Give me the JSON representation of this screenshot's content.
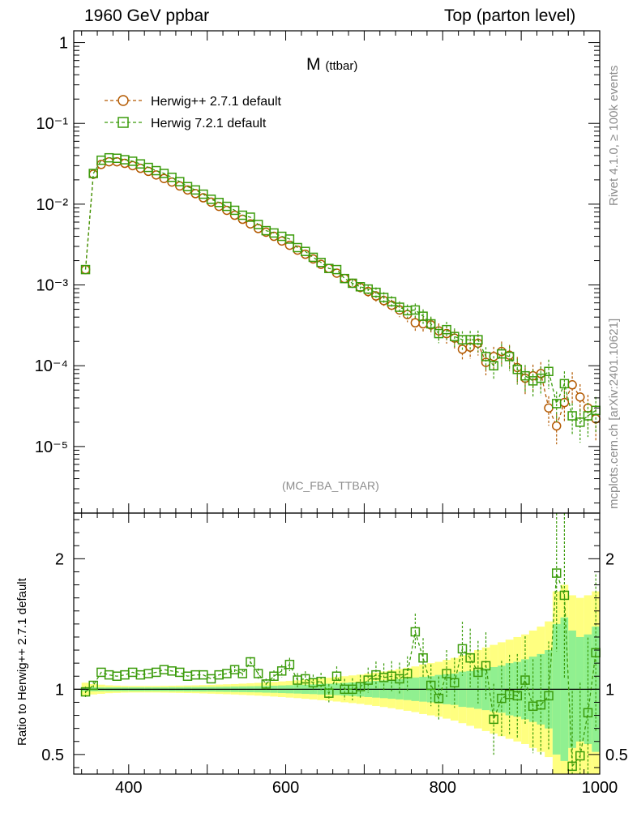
{
  "header": {
    "left": "1960 GeV ppbar",
    "right": "Top (parton level)"
  },
  "plot_title": {
    "main": "M",
    "sub": "(ttbar)"
  },
  "analysis": "(MC_FBA_TTBAR)",
  "side_text": {
    "rivet": "Rivet 4.1.0, ≥ 100k events",
    "mcplots": "mcplots.cern.ch [arXiv:2401.10621]"
  },
  "ratio_ylabel": "Ratio to Herwig++ 2.7.1 default",
  "legend": [
    {
      "label": "Herwig++ 2.7.1 default",
      "color": "#b35900",
      "marker": "circle"
    },
    {
      "label": "Herwig 7.2.1 default",
      "color": "#3a9b0a",
      "marker": "square"
    }
  ],
  "chart_data": {
    "type": "line",
    "xlabel": "",
    "ylabel": "",
    "xlim": [
      330,
      1000
    ],
    "main": {
      "yscale": "log",
      "ylim": [
        1.5e-06,
        1.4
      ],
      "ytick_labels": [
        "1",
        "10⁻¹",
        "10⁻²",
        "10⁻³",
        "10⁻⁴",
        "10⁻⁵"
      ]
    },
    "ratio": {
      "ylim": [
        0.35,
        2.35
      ],
      "yticks": [
        0.5,
        1,
        2
      ],
      "ytick_labels": [
        "0.5",
        "1",
        "2"
      ]
    },
    "xticks": [
      400,
      600,
      800,
      1000
    ],
    "xtick_labels": [
      "400",
      "600",
      "800",
      "1000"
    ],
    "x": [
      345,
      355,
      365,
      375,
      385,
      395,
      405,
      415,
      425,
      435,
      445,
      455,
      465,
      475,
      485,
      495,
      505,
      515,
      525,
      535,
      545,
      555,
      565,
      575,
      585,
      595,
      605,
      615,
      625,
      635,
      645,
      655,
      665,
      675,
      685,
      695,
      705,
      715,
      725,
      735,
      745,
      755,
      765,
      775,
      785,
      795,
      805,
      815,
      825,
      835,
      845,
      855,
      865,
      875,
      885,
      895,
      905,
      915,
      925,
      935,
      945,
      955,
      965,
      975,
      985,
      995
    ],
    "series": [
      {
        "name": "Herwig++ 2.7.1 default",
        "values": [
          0.00155,
          0.0235,
          0.031,
          0.0335,
          0.0335,
          0.032,
          0.03,
          0.0278,
          0.0255,
          0.023,
          0.0208,
          0.0188,
          0.0168,
          0.015,
          0.0135,
          0.012,
          0.0106,
          0.0094,
          0.0084,
          0.0073,
          0.0065,
          0.0057,
          0.005,
          0.0045,
          0.004,
          0.0035,
          0.0031,
          0.0027,
          0.0024,
          0.0021,
          0.0018,
          0.0016,
          0.0014,
          0.0012,
          0.00105,
          0.00093,
          0.00083,
          0.00073,
          0.00064,
          0.00056,
          0.00049,
          0.00043,
          0.00034,
          0.00033,
          0.00032,
          0.00027,
          0.00025,
          0.00022,
          0.00016,
          0.00017,
          0.00019,
          0.00011,
          0.00013,
          0.00015,
          0.000135,
          9.5e-05,
          7e-05,
          7.5e-05,
          8e-05,
          3e-05,
          1.8e-05,
          3.5e-05,
          5.8e-05,
          4.1e-05,
          3e-05,
          2.2e-05
        ]
      },
      {
        "name": "Herwig 7.2.1 default",
        "values": [
          0.00155,
          0.024,
          0.035,
          0.0375,
          0.037,
          0.0355,
          0.034,
          0.0315,
          0.0285,
          0.026,
          0.024,
          0.0215,
          0.019,
          0.0165,
          0.015,
          0.0133,
          0.0115,
          0.0105,
          0.0094,
          0.0084,
          0.0073,
          0.0069,
          0.0056,
          0.0047,
          0.0044,
          0.004,
          0.0037,
          0.0029,
          0.0026,
          0.0022,
          0.0019,
          0.0016,
          0.00155,
          0.0012,
          0.00105,
          0.00095,
          0.00089,
          0.00081,
          0.0007,
          0.00062,
          0.00053,
          0.00048,
          0.00049,
          0.00041,
          0.00033,
          0.00025,
          0.00028,
          0.00023,
          0.00021,
          0.00021,
          0.00021,
          0.00013,
          0.0001,
          0.00014,
          0.00013,
          9e-05,
          7.5e-05,
          6.5e-05,
          7e-05,
          8.5e-05,
          3.4e-05,
          6e-05,
          2.4e-05,
          2e-05,
          2.4e-05,
          2.8e-05
        ]
      }
    ],
    "ratio_series": {
      "name": "Herwig 7.2.1 default",
      "values": [
        0.98,
        1.03,
        1.13,
        1.11,
        1.1,
        1.11,
        1.13,
        1.11,
        1.12,
        1.13,
        1.15,
        1.14,
        1.13,
        1.1,
        1.11,
        1.11,
        1.08,
        1.11,
        1.12,
        1.15,
        1.12,
        1.21,
        1.12,
        1.04,
        1.1,
        1.14,
        1.19,
        1.07,
        1.08,
        1.05,
        1.06,
        0.97,
        1.1,
        1.0,
        1.0,
        1.02,
        1.07,
        1.11,
        1.09,
        1.1,
        1.08,
        1.12,
        1.44,
        1.24,
        1.03,
        0.93,
        1.12,
        1.05,
        1.31,
        1.24,
        1.13,
        1.18,
        0.77,
        0.93,
        0.96,
        0.95,
        1.07,
        0.87,
        0.88,
        0.95,
        1.89,
        1.72,
        0.41,
        0.49,
        0.82,
        1.28
      ]
    },
    "error_bands": {
      "inner_halfwidth": [
        0.015,
        0.015,
        0.015,
        0.015,
        0.015,
        0.015,
        0.015,
        0.015,
        0.015,
        0.015,
        0.015,
        0.016,
        0.016,
        0.017,
        0.017,
        0.018,
        0.018,
        0.019,
        0.02,
        0.021,
        0.022,
        0.023,
        0.024,
        0.026,
        0.027,
        0.029,
        0.031,
        0.033,
        0.035,
        0.037,
        0.04,
        0.042,
        0.045,
        0.049,
        0.052,
        0.056,
        0.06,
        0.064,
        0.068,
        0.073,
        0.078,
        0.083,
        0.09,
        0.095,
        0.1,
        0.11,
        0.115,
        0.12,
        0.135,
        0.14,
        0.15,
        0.16,
        0.17,
        0.18,
        0.2,
        0.21,
        0.23,
        0.25,
        0.27,
        0.3,
        0.5,
        0.55,
        0.45,
        0.4,
        0.42,
        0.48
      ],
      "outer_halfwidth": [
        0.05,
        0.04,
        0.035,
        0.03,
        0.028,
        0.026,
        0.025,
        0.025,
        0.025,
        0.025,
        0.026,
        0.027,
        0.028,
        0.029,
        0.03,
        0.032,
        0.034,
        0.036,
        0.038,
        0.04,
        0.043,
        0.046,
        0.049,
        0.052,
        0.056,
        0.06,
        0.064,
        0.068,
        0.073,
        0.078,
        0.083,
        0.088,
        0.094,
        0.1,
        0.106,
        0.112,
        0.12,
        0.128,
        0.136,
        0.145,
        0.155,
        0.165,
        0.175,
        0.19,
        0.2,
        0.21,
        0.225,
        0.24,
        0.26,
        0.28,
        0.3,
        0.32,
        0.34,
        0.36,
        0.38,
        0.4,
        0.42,
        0.45,
        0.48,
        0.52,
        0.75,
        0.8,
        0.72,
        0.7,
        0.72,
        0.75
      ]
    }
  }
}
